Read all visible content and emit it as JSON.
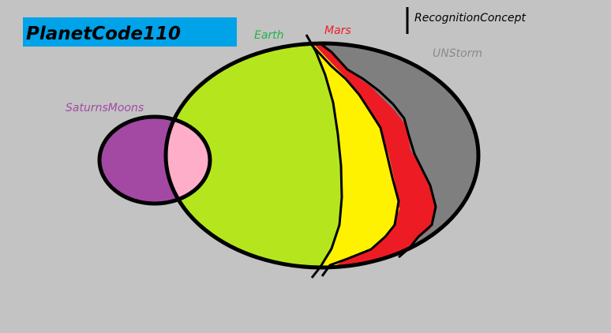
{
  "title": "PlanetCode110",
  "labels": {
    "earth": "Earth",
    "mars": "Mars",
    "unstorm": "UNStorm",
    "saturns_moons": "SaturnsMoons",
    "recognition_concept": "RecognitionConcept"
  },
  "colors": {
    "background": "#c3c3c3",
    "title_box": "#00a2e8",
    "earth": "#b5e61d",
    "earth_label": "#22b14c",
    "yellow_band": "#fff200",
    "mars": "#ed1c24",
    "unstorm": "#7f7f7f",
    "unstorm_label": "#8a8a8a",
    "saturns_moons": "#a349a4",
    "overlap": "#ffaec9",
    "outline": "#000000"
  }
}
